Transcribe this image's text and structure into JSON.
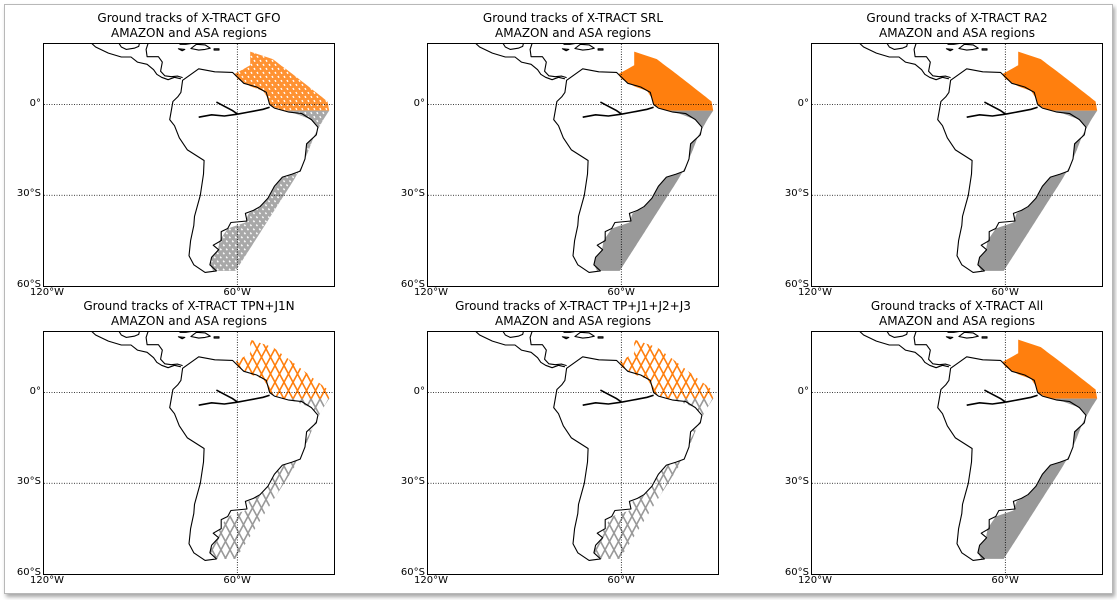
{
  "figure": {
    "panels": [
      {
        "title": "Ground tracks of X-TRACT GFO",
        "subtitle": "AMAZON and ASA regions",
        "pattern": "sparse-ascending"
      },
      {
        "title": "Ground tracks of X-TRACT SRL",
        "subtitle": "AMAZON and ASA regions",
        "pattern": "dense"
      },
      {
        "title": "Ground tracks of X-TRACT RA2",
        "subtitle": "AMAZON and ASA regions",
        "pattern": "dense"
      },
      {
        "title": "Ground tracks of X-TRACT TPN+J1N",
        "subtitle": "AMAZON and ASA regions",
        "pattern": "crossing"
      },
      {
        "title": "Ground tracks of X-TRACT TP+J1+J2+J3",
        "subtitle": "AMAZON and ASA regions",
        "pattern": "crossing"
      },
      {
        "title": "Ground tracks of X-TRACT All",
        "subtitle": "AMAZON and ASA regions",
        "pattern": "dense"
      }
    ],
    "axes": {
      "y_ticks": [
        {
          "label": "0°",
          "value": 0
        },
        {
          "label": "30°S",
          "value": -30
        },
        {
          "label": "60°S",
          "value": -60
        }
      ],
      "x_ticks": [
        {
          "label": "120°W",
          "value": -120
        },
        {
          "label": "60°W",
          "value": -60
        }
      ],
      "lon_range": [
        -120,
        -30
      ],
      "lat_range": [
        -60,
        20
      ]
    },
    "regions": [
      {
        "name": "AMAZON",
        "color": "#ff7f0e"
      },
      {
        "name": "ASA",
        "color": "#999999"
      }
    ],
    "colors": {
      "coast": "#000000",
      "grid": "#000000",
      "amazon": "#ff7f0e",
      "asa": "#999999"
    }
  }
}
